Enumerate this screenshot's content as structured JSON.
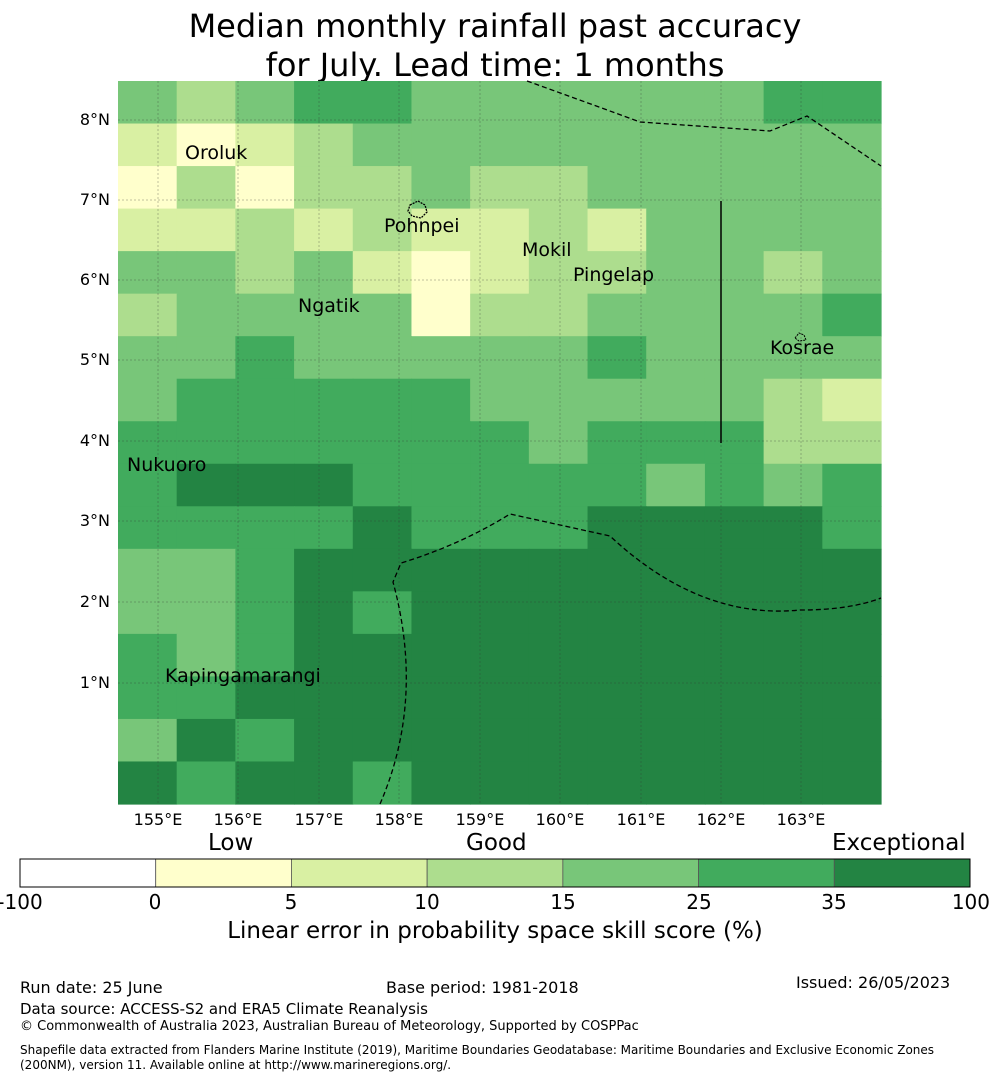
{
  "title_line1": "Median monthly rainfall past accuracy",
  "title_line2": "for July. Lead time: 1 months",
  "map": {
    "lon_ticks": [
      "155°E",
      "156°E",
      "157°E",
      "158°E",
      "159°E",
      "160°E",
      "161°E",
      "162°E",
      "163°E"
    ],
    "lat_ticks": [
      "8°N",
      "7°N",
      "6°N",
      "5°N",
      "4°N",
      "3°N",
      "2°N",
      "1°N"
    ],
    "places": [
      "Oroluk",
      "Pohnpei",
      "Mokil",
      "Pingelap",
      "Ngatik",
      "Kosrae",
      "Nukuoro",
      "Kapingamarangi"
    ],
    "grid_classes": [
      [
        4,
        3,
        4,
        5,
        5,
        4,
        4,
        4,
        4,
        4,
        4,
        5,
        5
      ],
      [
        2,
        1,
        2,
        3,
        4,
        4,
        4,
        4,
        4,
        4,
        4,
        4,
        4
      ],
      [
        1,
        3,
        1,
        3,
        3,
        4,
        3,
        3,
        4,
        4,
        4,
        4,
        4
      ],
      [
        2,
        2,
        3,
        2,
        3,
        2,
        2,
        3,
        2,
        4,
        4,
        4,
        4
      ],
      [
        4,
        4,
        3,
        4,
        2,
        1,
        2,
        3,
        3,
        4,
        4,
        3,
        4
      ],
      [
        3,
        4,
        4,
        4,
        4,
        1,
        3,
        3,
        4,
        4,
        4,
        4,
        5
      ],
      [
        4,
        4,
        5,
        4,
        4,
        4,
        4,
        4,
        5,
        4,
        4,
        4,
        4
      ],
      [
        4,
        5,
        5,
        5,
        5,
        5,
        4,
        4,
        4,
        4,
        4,
        3,
        2
      ],
      [
        5,
        5,
        5,
        5,
        5,
        5,
        5,
        4,
        5,
        5,
        5,
        3,
        3
      ],
      [
        5,
        6,
        6,
        6,
        5,
        5,
        5,
        5,
        5,
        4,
        5,
        4,
        5
      ],
      [
        5,
        5,
        5,
        5,
        6,
        5,
        5,
        5,
        6,
        6,
        6,
        6,
        5
      ],
      [
        4,
        4,
        5,
        6,
        6,
        6,
        6,
        6,
        6,
        6,
        6,
        6,
        6
      ],
      [
        4,
        4,
        5,
        6,
        5,
        6,
        6,
        6,
        6,
        6,
        6,
        6,
        6
      ],
      [
        5,
        4,
        5,
        6,
        6,
        6,
        6,
        6,
        6,
        6,
        6,
        6,
        6
      ],
      [
        5,
        5,
        6,
        6,
        6,
        6,
        6,
        6,
        6,
        6,
        6,
        6,
        6
      ],
      [
        4,
        6,
        5,
        6,
        6,
        6,
        6,
        6,
        6,
        6,
        6,
        6,
        6
      ],
      [
        6,
        5,
        6,
        6,
        5,
        6,
        6,
        6,
        6,
        6,
        6,
        6,
        6
      ]
    ]
  },
  "legend": {
    "categories": [
      "Low",
      "Good",
      "Exceptional"
    ],
    "bins": [
      -100,
      0,
      5,
      10,
      15,
      25,
      35,
      100
    ],
    "tick_labels": [
      "-100",
      "0",
      "5",
      "10",
      "15",
      "25",
      "35",
      "100"
    ],
    "colors": [
      "#ffffff",
      "#ffffcc",
      "#d9f0a3",
      "#addd8e",
      "#78c679",
      "#41ab5d",
      "#238443"
    ],
    "label": "Linear error in probability space skill score (%)"
  },
  "footer": {
    "run_date": "Run date: 25 June",
    "base_period": "Base period: 1981-2018",
    "issued": "Issued: 26/05/2023",
    "data_source": "Data source: ACCESS-S2 and ERA5 Climate Reanalysis",
    "copyright": "© Commonwealth of Australia 2023, Australian Bureau of Meteorology, Supported by COSPPac",
    "shapefile": "Shapefile data extracted from Flanders Marine Institute (2019), Maritime Boundaries Geodatabase: Maritime Boundaries and Exclusive Economic Zones (200NM), version 11. Available online at http://www.marineregions.org/."
  }
}
